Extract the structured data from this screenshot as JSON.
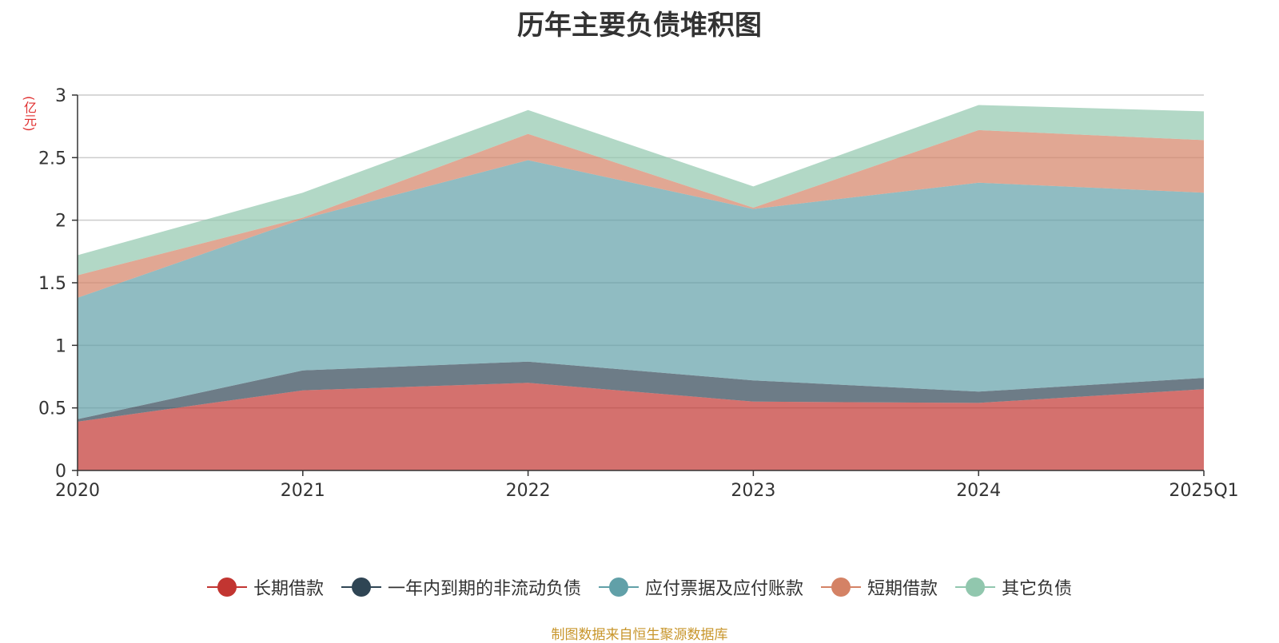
{
  "chart_data": {
    "type": "area",
    "stacked": true,
    "title": "历年主要负债堆积图",
    "unit_label": "(亿元)",
    "categories": [
      "2020",
      "2021",
      "2022",
      "2023",
      "2024",
      "2025Q1"
    ],
    "ylim": [
      0,
      3
    ],
    "yticks": [
      "0",
      "0.5",
      "1",
      "1.5",
      "2",
      "2.5",
      "3"
    ],
    "grid": true,
    "legend_position": "bottom",
    "series": [
      {
        "name": "长期借款",
        "color": "#c23531",
        "values": [
          0.39,
          0.64,
          0.7,
          0.55,
          0.54,
          0.65
        ]
      },
      {
        "name": "一年内到期的非流动负债",
        "color": "#2f4554",
        "values": [
          0.02,
          0.16,
          0.17,
          0.17,
          0.09,
          0.09
        ]
      },
      {
        "name": "应付票据及应付账款",
        "color": "#61a0a8",
        "values": [
          0.97,
          1.21,
          1.61,
          1.37,
          1.67,
          1.48
        ]
      },
      {
        "name": "短期借款",
        "color": "#d48265",
        "values": [
          0.18,
          0.01,
          0.21,
          0.01,
          0.42,
          0.42
        ]
      },
      {
        "name": "其它负债",
        "color": "#91c7ae",
        "values": [
          0.16,
          0.2,
          0.19,
          0.17,
          0.2,
          0.23
        ]
      }
    ]
  },
  "source_note": "制图数据来自恒生聚源数据库"
}
